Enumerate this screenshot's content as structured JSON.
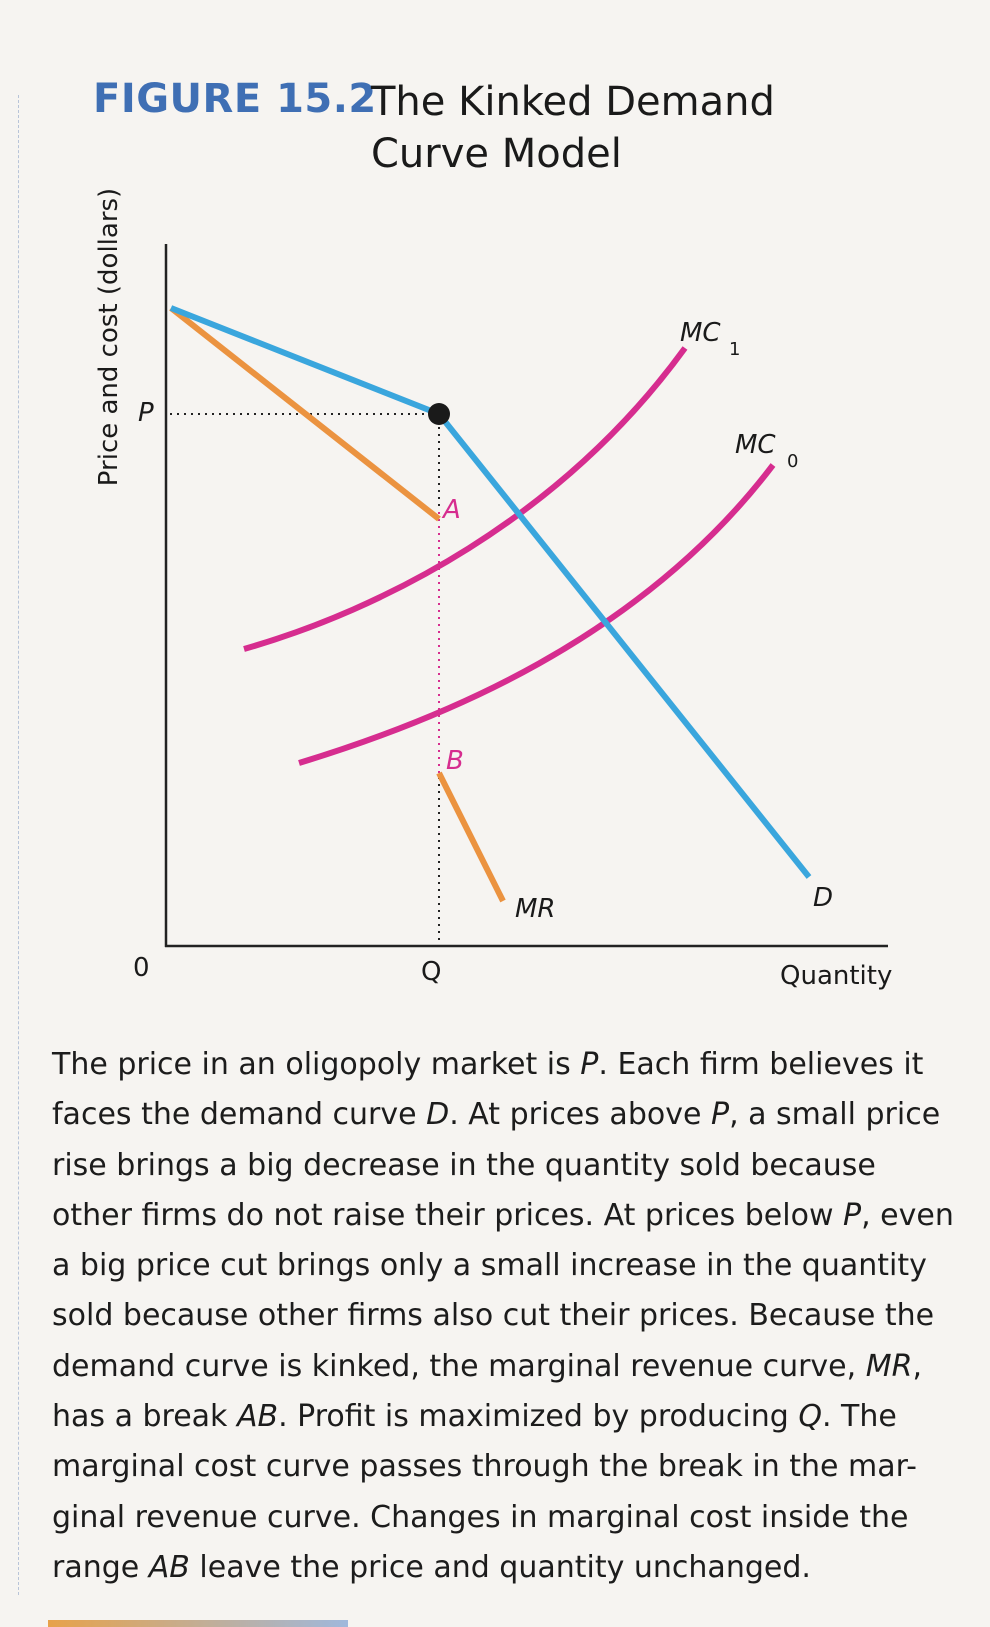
{
  "figure": {
    "number_label": "FIGURE 15.2",
    "title_line1": "The Kinked Demand",
    "title_line2": "Curve Model"
  },
  "diagram": {
    "y_axis_label": "Price and cost (dollars)",
    "x_axis_label": "Quantity",
    "origin_label": "0",
    "price_label": "P",
    "quantity_label": "Q",
    "point_a_label": "A",
    "point_b_label": "B",
    "demand_label": "D",
    "mr_label": "MR",
    "mc1_label": "MC",
    "mc1_sub": "1",
    "mc0_label": "MC",
    "mc0_sub": "0",
    "colors": {
      "demand": "#3aa6dd",
      "marginal_revenue": "#eb9340",
      "marginal_cost": "#d62d8f",
      "figure_label": "#3f6fb4"
    }
  },
  "caption": [
    [
      {
        "t": "The price in an oligopoly market is "
      },
      {
        "t": "P",
        "i": true
      },
      {
        "t": ". Each firm believes it"
      }
    ],
    [
      {
        "t": "faces the demand curve "
      },
      {
        "t": "D",
        "i": true
      },
      {
        "t": ". At prices above "
      },
      {
        "t": "P",
        "i": true
      },
      {
        "t": ", a small price"
      }
    ],
    [
      {
        "t": "rise brings a big decrease in the quantity sold because"
      }
    ],
    [
      {
        "t": "other firms do not raise their prices. At prices below "
      },
      {
        "t": "P",
        "i": true
      },
      {
        "t": ", even"
      }
    ],
    [
      {
        "t": "a big price cut brings only a small increase in the quantity"
      }
    ],
    [
      {
        "t": "sold because other firms also cut their prices. Because the"
      }
    ],
    [
      {
        "t": "demand curve is kinked, the marginal revenue curve, "
      },
      {
        "t": "MR",
        "i": true
      },
      {
        "t": ","
      }
    ],
    [
      {
        "t": "has a break "
      },
      {
        "t": "AB",
        "i": true
      },
      {
        "t": ". Profit is maximized by producing "
      },
      {
        "t": "Q",
        "i": true
      },
      {
        "t": ". The"
      }
    ],
    [
      {
        "t": "marginal cost curve passes through the break in the mar-"
      }
    ],
    [
      {
        "t": "ginal revenue curve. Changes in marginal cost inside the"
      }
    ],
    [
      {
        "t": "range "
      },
      {
        "t": "AB",
        "i": true
      },
      {
        "t": " leave the price and quantity unchanged."
      }
    ]
  ]
}
